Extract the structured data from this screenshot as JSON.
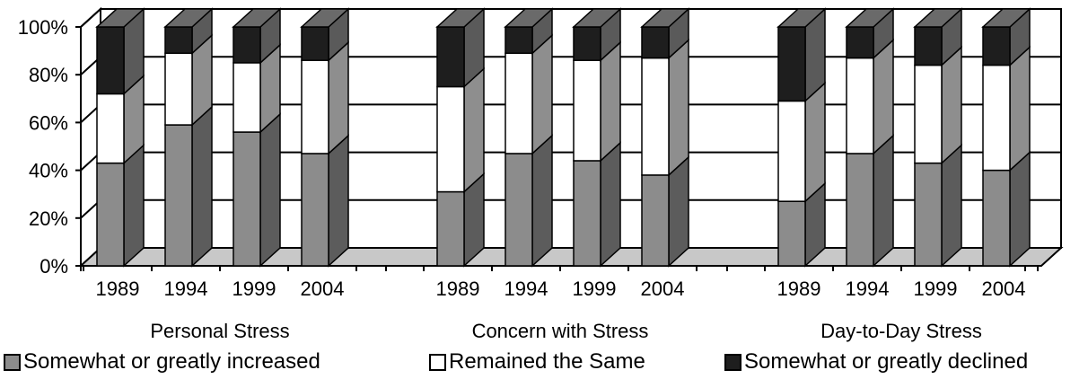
{
  "chart_data": {
    "type": "bar",
    "stacked": true,
    "percent": true,
    "three_d": true,
    "ylim": [
      0,
      100
    ],
    "y_ticks": [
      "0%",
      "20%",
      "40%",
      "60%",
      "80%",
      "100%"
    ],
    "groups": [
      {
        "name": "Personal Stress",
        "categories": [
          "1989",
          "1994",
          "1999",
          "2004"
        ]
      },
      {
        "name": "Concern with Stress",
        "categories": [
          "1989",
          "1994",
          "1999",
          "2004"
        ]
      },
      {
        "name": "Day-to-Day Stress",
        "categories": [
          "1989",
          "1994",
          "1999",
          "2004"
        ]
      }
    ],
    "series": [
      {
        "name": "Somewhat or greatly increased",
        "color": "#8c8c8c",
        "values": [
          43,
          59,
          56,
          47,
          31,
          47,
          44,
          38,
          27,
          47,
          43,
          40
        ]
      },
      {
        "name": "Remained the Same",
        "color": "#ffffff",
        "values": [
          29,
          30,
          29,
          39,
          44,
          42,
          42,
          49,
          42,
          40,
          41,
          44
        ]
      },
      {
        "name": "Somewhat or greatly declined",
        "color": "#1e1e1e",
        "values": [
          28,
          11,
          15,
          14,
          25,
          11,
          14,
          13,
          31,
          13,
          16,
          16
        ]
      }
    ]
  }
}
